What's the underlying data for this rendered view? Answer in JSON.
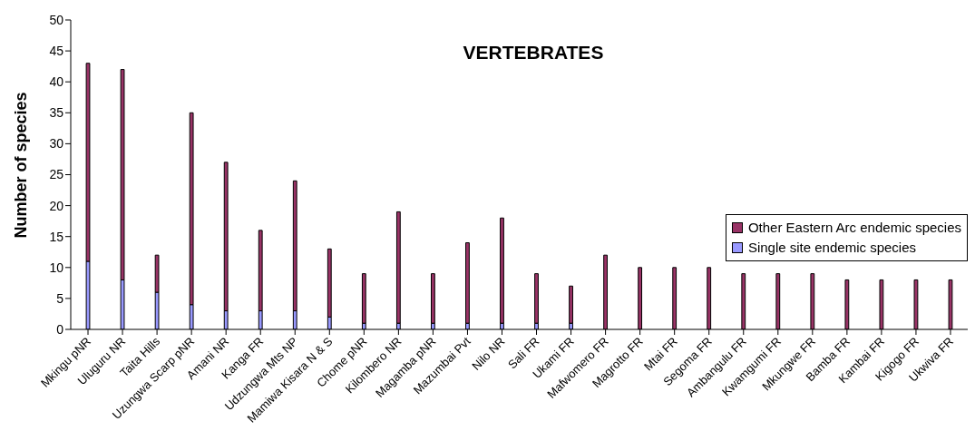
{
  "chart_data": {
    "type": "bar",
    "title": "VERTEBRATES",
    "ylabel": "Number of species",
    "categories": [
      "Mkingu pNR",
      "Uluguru NR",
      "Taita Hills",
      "Uzungwa Scarp pNR",
      "Amani NR",
      "Kanga FR",
      "Udzungwa Mts NP",
      "Mamiwa Kisara N & S",
      "Chome pNR",
      "Kilombero NR",
      "Magamba pNR",
      "Mazumbai Pvt",
      "Nilo NR",
      "Sali FR",
      "Ukami FR",
      "Mafwomero FR",
      "Magrotto FR",
      "Mtai FR",
      "Segoma FR",
      "Ambangulu FR",
      "Kwamgumi FR",
      "Mkungwe FR",
      "Bamba FR",
      "Kambai FR",
      "Kigogo FR",
      "Ukwiva FR"
    ],
    "series": [
      {
        "name": "Single site endemic species",
        "color": "#9999ff",
        "values": [
          11,
          8,
          6,
          4,
          3,
          3,
          3,
          2,
          1,
          1,
          1,
          1,
          1,
          1,
          1,
          0,
          0,
          0,
          0,
          0,
          0,
          0,
          0,
          0,
          0,
          0
        ]
      },
      {
        "name": "Other Eastern Arc endemic species",
        "color": "#993366",
        "values": [
          32,
          34,
          6,
          31,
          24,
          13,
          21,
          11,
          8,
          18,
          8,
          13,
          17,
          8,
          6,
          12,
          10,
          10,
          10,
          9,
          9,
          9,
          8,
          8,
          8,
          8
        ]
      }
    ],
    "stacked": true,
    "ylim": [
      0,
      50
    ],
    "yticks": [
      0,
      5,
      10,
      15,
      20,
      25,
      30,
      35,
      40,
      45,
      50
    ],
    "grid": false,
    "legend": "right"
  }
}
